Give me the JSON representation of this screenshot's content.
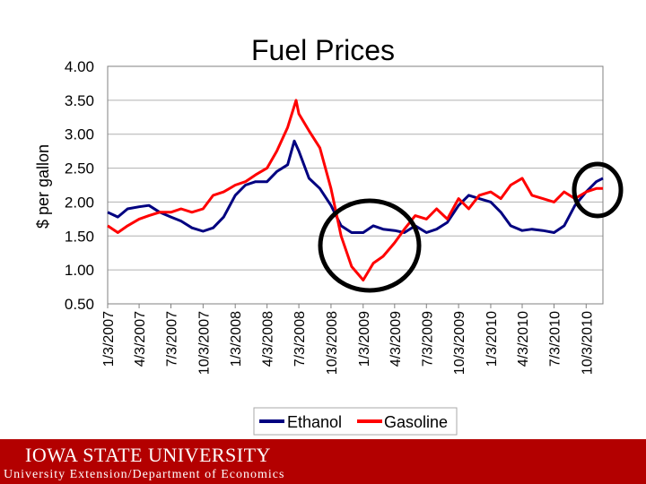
{
  "slide": {
    "logo": "IOWA STATE UNIVERSITY",
    "subtitle": "University Extension/Department of Economics"
  },
  "chart_data": {
    "type": "line",
    "title": "Fuel Prices",
    "xlabel": "",
    "ylabel": "$ per gallon",
    "ylim": [
      0.5,
      4.0
    ],
    "yticks": [
      "4.00",
      "3.50",
      "3.00",
      "2.50",
      "2.00",
      "1.50",
      "1.00",
      "0.50"
    ],
    "xticks": [
      "1/3/2007",
      "4/3/2007",
      "7/3/2007",
      "10/3/2007",
      "1/3/2008",
      "4/3/2008",
      "7/3/2008",
      "10/3/2008",
      "1/3/2009",
      "4/3/2009",
      "7/3/2009",
      "10/3/2009",
      "1/3/2010",
      "4/3/2010",
      "7/3/2010",
      "10/3/2010"
    ],
    "grid": true,
    "legend": "bottom",
    "series": [
      {
        "name": "Ethanol",
        "color": "#000080",
        "points": [
          [
            "1/3/2007",
            1.85
          ],
          [
            "2/1/2007",
            1.78
          ],
          [
            "3/1/2007",
            1.9
          ],
          [
            "4/3/2007",
            1.93
          ],
          [
            "5/1/2007",
            1.95
          ],
          [
            "6/1/2007",
            1.85
          ],
          [
            "7/3/2007",
            1.78
          ],
          [
            "8/1/2007",
            1.72
          ],
          [
            "9/1/2007",
            1.62
          ],
          [
            "10/3/2007",
            1.57
          ],
          [
            "11/1/2007",
            1.62
          ],
          [
            "12/1/2007",
            1.78
          ],
          [
            "1/3/2008",
            2.1
          ],
          [
            "2/1/2008",
            2.25
          ],
          [
            "3/1/2008",
            2.3
          ],
          [
            "4/3/2008",
            2.3
          ],
          [
            "5/1/2008",
            2.45
          ],
          [
            "6/1/2008",
            2.55
          ],
          [
            "6/20/2008",
            2.9
          ],
          [
            "7/3/2008",
            2.75
          ],
          [
            "8/1/2008",
            2.35
          ],
          [
            "9/1/2008",
            2.2
          ],
          [
            "10/3/2008",
            1.95
          ],
          [
            "11/1/2008",
            1.65
          ],
          [
            "12/1/2008",
            1.55
          ],
          [
            "1/3/2009",
            1.55
          ],
          [
            "2/1/2009",
            1.65
          ],
          [
            "3/1/2009",
            1.6
          ],
          [
            "4/3/2009",
            1.58
          ],
          [
            "5/1/2009",
            1.55
          ],
          [
            "6/1/2009",
            1.65
          ],
          [
            "7/3/2009",
            1.55
          ],
          [
            "8/1/2009",
            1.6
          ],
          [
            "9/1/2009",
            1.7
          ],
          [
            "10/3/2009",
            1.95
          ],
          [
            "11/1/2009",
            2.1
          ],
          [
            "12/1/2009",
            2.05
          ],
          [
            "1/3/2010",
            2.0
          ],
          [
            "2/1/2010",
            1.85
          ],
          [
            "3/1/2010",
            1.65
          ],
          [
            "4/3/2010",
            1.58
          ],
          [
            "5/1/2010",
            1.6
          ],
          [
            "6/1/2010",
            1.58
          ],
          [
            "7/3/2010",
            1.55
          ],
          [
            "8/1/2010",
            1.65
          ],
          [
            "9/1/2010",
            1.95
          ],
          [
            "10/3/2010",
            2.15
          ],
          [
            "11/1/2010",
            2.3
          ],
          [
            "11/20/2010",
            2.35
          ]
        ]
      },
      {
        "name": "Gasoline",
        "color": "#ff0000",
        "points": [
          [
            "1/3/2007",
            1.65
          ],
          [
            "2/1/2007",
            1.55
          ],
          [
            "3/1/2007",
            1.65
          ],
          [
            "4/3/2007",
            1.75
          ],
          [
            "5/1/2007",
            1.8
          ],
          [
            "6/1/2007",
            1.85
          ],
          [
            "7/3/2007",
            1.85
          ],
          [
            "8/1/2007",
            1.9
          ],
          [
            "9/1/2007",
            1.85
          ],
          [
            "10/3/2007",
            1.9
          ],
          [
            "11/1/2007",
            2.1
          ],
          [
            "12/1/2007",
            2.15
          ],
          [
            "1/3/2008",
            2.25
          ],
          [
            "2/1/2008",
            2.3
          ],
          [
            "3/1/2008",
            2.4
          ],
          [
            "4/3/2008",
            2.5
          ],
          [
            "5/1/2008",
            2.75
          ],
          [
            "6/1/2008",
            3.1
          ],
          [
            "6/25/2008",
            3.5
          ],
          [
            "7/3/2008",
            3.3
          ],
          [
            "8/1/2008",
            3.05
          ],
          [
            "9/1/2008",
            2.8
          ],
          [
            "10/3/2008",
            2.2
          ],
          [
            "11/1/2008",
            1.5
          ],
          [
            "12/1/2008",
            1.05
          ],
          [
            "1/3/2009",
            0.85
          ],
          [
            "2/1/2009",
            1.1
          ],
          [
            "3/1/2009",
            1.2
          ],
          [
            "4/3/2009",
            1.4
          ],
          [
            "5/1/2009",
            1.6
          ],
          [
            "6/1/2009",
            1.8
          ],
          [
            "7/3/2009",
            1.75
          ],
          [
            "8/1/2009",
            1.9
          ],
          [
            "9/1/2009",
            1.75
          ],
          [
            "10/3/2009",
            2.05
          ],
          [
            "11/1/2009",
            1.9
          ],
          [
            "12/1/2009",
            2.1
          ],
          [
            "1/3/2010",
            2.15
          ],
          [
            "2/1/2010",
            2.05
          ],
          [
            "3/1/2010",
            2.25
          ],
          [
            "4/3/2010",
            2.35
          ],
          [
            "5/1/2010",
            2.1
          ],
          [
            "6/1/2010",
            2.05
          ],
          [
            "7/3/2010",
            2.0
          ],
          [
            "8/1/2010",
            2.15
          ],
          [
            "9/1/2010",
            2.05
          ],
          [
            "10/3/2010",
            2.15
          ],
          [
            "11/1/2010",
            2.2
          ],
          [
            "11/20/2010",
            2.2
          ]
        ]
      }
    ]
  }
}
